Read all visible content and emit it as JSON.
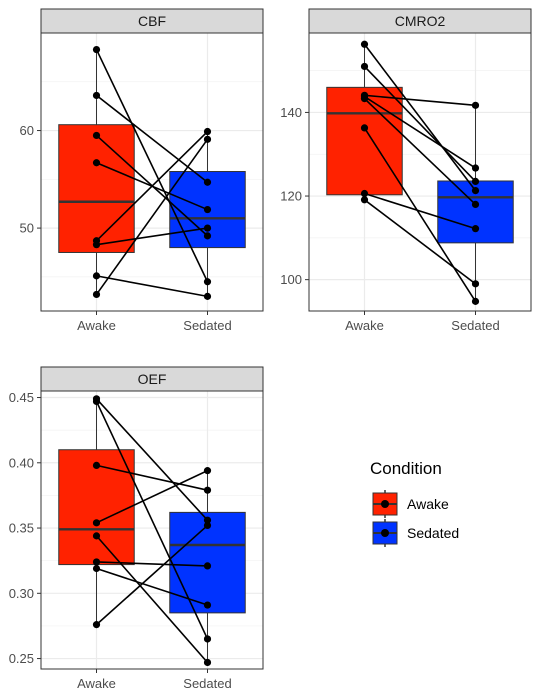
{
  "chart_data": [
    {
      "type": "box",
      "title": "CBF",
      "categories": [
        "Awake",
        "Sedated"
      ],
      "ylim": [
        41.5,
        70.0
      ],
      "yticks": [
        50,
        60
      ],
      "grid": true,
      "boxes": [
        {
          "category": "Awake",
          "q1": 47.5,
          "median": 52.7,
          "q3": 60.6,
          "whisker_low": 43.2,
          "whisker_high": 68.3
        },
        {
          "category": "Sedated",
          "q1": 48.0,
          "median": 51.0,
          "q3": 55.8,
          "whisker_low": 43.0,
          "whisker_high": 59.9
        }
      ],
      "pairs": [
        [
          68.3,
          44.5
        ],
        [
          63.6,
          54.7
        ],
        [
          59.5,
          49.2
        ],
        [
          56.7,
          51.9
        ],
        [
          48.7,
          59.9
        ],
        [
          48.3,
          50.0
        ],
        [
          45.1,
          43.0
        ],
        [
          43.2,
          59.1
        ]
      ]
    },
    {
      "type": "box",
      "title": "CMRO2",
      "categories": [
        "Awake",
        "Sedated"
      ],
      "ylim": [
        92.5,
        159.0
      ],
      "yticks": [
        100,
        120,
        140
      ],
      "grid": true,
      "boxes": [
        {
          "category": "Awake",
          "q1": 120.3,
          "median": 139.8,
          "q3": 146.0,
          "whisker_low": 119.1,
          "whisker_high": 156.3
        },
        {
          "category": "Sedated",
          "q1": 108.8,
          "median": 119.7,
          "q3": 123.6,
          "whisker_low": 94.8,
          "whisker_high": 141.7
        }
      ],
      "pairs": [
        [
          156.3,
          121.3
        ],
        [
          151.0,
          123.5
        ],
        [
          144.1,
          141.7
        ],
        [
          143.3,
          118.0
        ],
        [
          136.3,
          94.8
        ],
        [
          120.6,
          112.2
        ],
        [
          119.1,
          99.0
        ],
        [
          143.8,
          126.7
        ]
      ]
    },
    {
      "type": "box",
      "title": "OEF",
      "categories": [
        "Awake",
        "Sedated"
      ],
      "ylim": [
        0.242,
        0.455
      ],
      "yticks": [
        0.25,
        0.3,
        0.35,
        0.4,
        0.45
      ],
      "tick_labels": [
        "0.25",
        "0.30",
        "0.35",
        "0.40",
        "0.45"
      ],
      "grid": true,
      "boxes": [
        {
          "category": "Awake",
          "q1": 0.322,
          "median": 0.349,
          "q3": 0.41,
          "whisker_low": 0.276,
          "whisker_high": 0.449
        },
        {
          "category": "Sedated",
          "q1": 0.285,
          "median": 0.337,
          "q3": 0.362,
          "whisker_low": 0.247,
          "whisker_high": 0.394
        }
      ],
      "pairs": [
        [
          0.449,
          0.356
        ],
        [
          0.447,
          0.265
        ],
        [
          0.398,
          0.379
        ],
        [
          0.354,
          0.394
        ],
        [
          0.344,
          0.247
        ],
        [
          0.324,
          0.321
        ],
        [
          0.319,
          0.291
        ],
        [
          0.276,
          0.352
        ]
      ]
    }
  ],
  "legend": {
    "title": "Condition",
    "placement": "right",
    "items": [
      {
        "label": "Awake",
        "color": "#ff2200"
      },
      {
        "label": "Sedated",
        "color": "#0033ff"
      }
    ]
  },
  "colors": {
    "Awake": "#ff2200",
    "Sedated": "#0033ff",
    "strip": "#d9d9d9",
    "grid": "#ebebeb",
    "line": "#000000"
  }
}
